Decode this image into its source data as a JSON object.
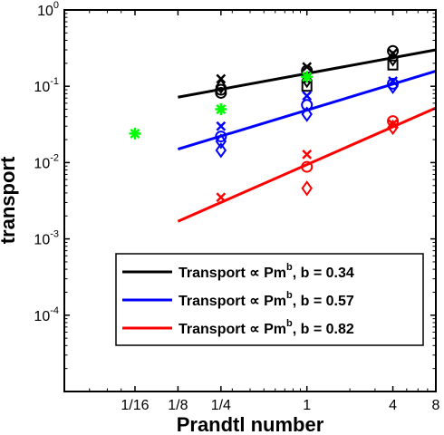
{
  "chart_data": {
    "type": "scatter",
    "xlabel": "Prandtl number",
    "ylabel": "transport",
    "x_scale": "log2",
    "y_scale": "log10",
    "xlim": [
      0.02,
      8
    ],
    "ylim": [
      1e-05,
      1
    ],
    "x_ticks": [
      {
        "value": 0.0625,
        "label": "1/16"
      },
      {
        "value": 0.125,
        "label": "1/8"
      },
      {
        "value": 0.25,
        "label": "1/4"
      },
      {
        "value": 1,
        "label": "1"
      },
      {
        "value": 4,
        "label": "4"
      },
      {
        "value": 8,
        "label": "8"
      }
    ],
    "y_ticks": [
      {
        "value": 0.0001,
        "base": "10",
        "exp": "-4"
      },
      {
        "value": 0.001,
        "base": "10",
        "exp": "-3"
      },
      {
        "value": 0.01,
        "base": "10",
        "exp": "-2"
      },
      {
        "value": 0.1,
        "base": "10",
        "exp": "-1"
      },
      {
        "value": 1,
        "base": "10",
        "exp": "0"
      }
    ],
    "fit_lines": [
      {
        "color": "#000000",
        "x_range": [
          0.125,
          8
        ],
        "y_range": [
          0.072,
          0.3
        ],
        "legend": "Transport ∝ Pm",
        "exponent": "b",
        "suffix": ", b = 0.34"
      },
      {
        "color": "#0000ff",
        "x_range": [
          0.125,
          8
        ],
        "y_range": [
          0.015,
          0.158
        ],
        "legend": "Transport ∝ Pm",
        "exponent": "b",
        "suffix": ", b = 0.57"
      },
      {
        "color": "#ff0000",
        "x_range": [
          0.125,
          8
        ],
        "y_range": [
          0.0017,
          0.052
        ],
        "legend": "Transport ∝ Pm",
        "exponent": "b",
        "suffix": ", b = 0.82"
      }
    ],
    "points": [
      {
        "x": 0.25,
        "y": 0.125,
        "marker": "x",
        "color": "#000000"
      },
      {
        "x": 0.25,
        "y": 0.1,
        "marker": "diamond",
        "color": "#000000"
      },
      {
        "x": 0.25,
        "y": 0.09,
        "marker": "circle",
        "color": "#000000"
      },
      {
        "x": 0.25,
        "y": 0.082,
        "marker": "circle",
        "color": "#000000"
      },
      {
        "x": 1,
        "y": 0.18,
        "marker": "x",
        "color": "#000000"
      },
      {
        "x": 1,
        "y": 0.16,
        "marker": "circle",
        "color": "#000000"
      },
      {
        "x": 1,
        "y": 0.12,
        "marker": "diamond",
        "color": "#000000"
      },
      {
        "x": 1,
        "y": 0.1,
        "marker": "square",
        "color": "#000000"
      },
      {
        "x": 4,
        "y": 0.29,
        "marker": "circle",
        "color": "#000000"
      },
      {
        "x": 4,
        "y": 0.27,
        "marker": "x",
        "color": "#000000"
      },
      {
        "x": 4,
        "y": 0.23,
        "marker": "diamond",
        "color": "#000000"
      },
      {
        "x": 4,
        "y": 0.19,
        "marker": "square",
        "color": "#000000"
      },
      {
        "x": 0.25,
        "y": 0.03,
        "marker": "x",
        "color": "#0000ff"
      },
      {
        "x": 0.25,
        "y": 0.022,
        "marker": "circle",
        "color": "#0000ff"
      },
      {
        "x": 0.25,
        "y": 0.019,
        "marker": "diamond",
        "color": "#0000ff"
      },
      {
        "x": 0.25,
        "y": 0.0145,
        "marker": "diamond",
        "color": "#0000ff"
      },
      {
        "x": 1,
        "y": 0.075,
        "marker": "x",
        "color": "#0000ff"
      },
      {
        "x": 1,
        "y": 0.057,
        "marker": "circle",
        "color": "#0000ff"
      },
      {
        "x": 1,
        "y": 0.043,
        "marker": "diamond",
        "color": "#0000ff"
      },
      {
        "x": 4,
        "y": 0.117,
        "marker": "x",
        "color": "#0000ff"
      },
      {
        "x": 4,
        "y": 0.108,
        "marker": "circle",
        "color": "#0000ff"
      },
      {
        "x": 4,
        "y": 0.1,
        "marker": "diamond",
        "color": "#0000ff"
      },
      {
        "x": 0.25,
        "y": 0.0035,
        "marker": "x",
        "color": "#ff0000"
      },
      {
        "x": 1,
        "y": 0.0128,
        "marker": "x",
        "color": "#ff0000"
      },
      {
        "x": 1,
        "y": 0.0088,
        "marker": "circle",
        "color": "#ff0000"
      },
      {
        "x": 1,
        "y": 0.0046,
        "marker": "diamond",
        "color": "#ff0000"
      },
      {
        "x": 4,
        "y": 0.035,
        "marker": "circle",
        "color": "#ff0000"
      },
      {
        "x": 4,
        "y": 0.032,
        "marker": "x",
        "color": "#ff0000"
      },
      {
        "x": 4,
        "y": 0.029,
        "marker": "diamond",
        "color": "#ff0000"
      },
      {
        "x": 0.0625,
        "y": 0.024,
        "marker": "asterisk",
        "color": "#00ff00"
      },
      {
        "x": 0.25,
        "y": 0.05,
        "marker": "asterisk",
        "color": "#00ff00"
      },
      {
        "x": 1,
        "y": 0.133,
        "marker": "asterisk",
        "color": "#00ff00"
      }
    ],
    "legend_placement": "lower-right",
    "grid": false
  }
}
